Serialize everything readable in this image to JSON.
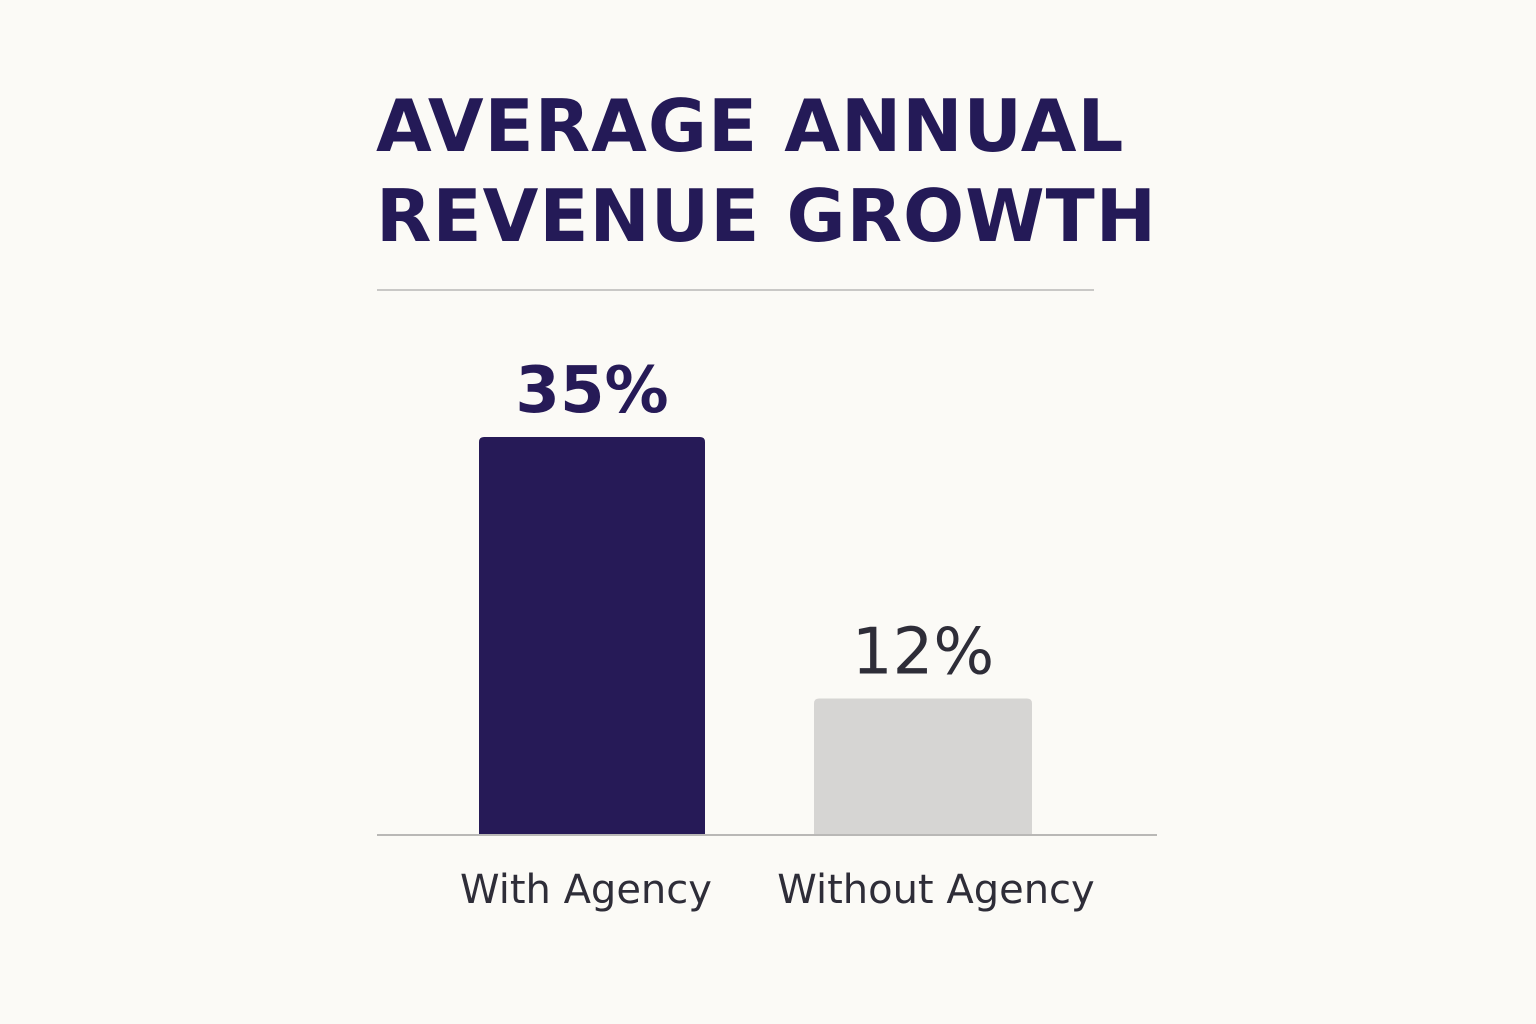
{
  "chart_data": {
    "type": "bar",
    "title": "AVERAGE ANNUAL REVENUE GROWTH",
    "title_lines": [
      "AVERAGE ANNUAL",
      "REVENUE GROWTH"
    ],
    "categories": [
      "With Agency",
      "Without Agency"
    ],
    "values": [
      35,
      12
    ],
    "value_labels": [
      "35%",
      "12%"
    ],
    "xlabel": "",
    "ylabel": "",
    "ylim": [
      0,
      35
    ],
    "grid": false,
    "legend": "none",
    "colors": {
      "bars": [
        "#261a57",
        "#d6d5d3"
      ],
      "value_labels": [
        "#261a57",
        "#2e2d38"
      ],
      "category_labels": "#2e2d38",
      "title": "#241a57",
      "axis": "#b9b8b6",
      "background": "#fbfaf6"
    }
  }
}
